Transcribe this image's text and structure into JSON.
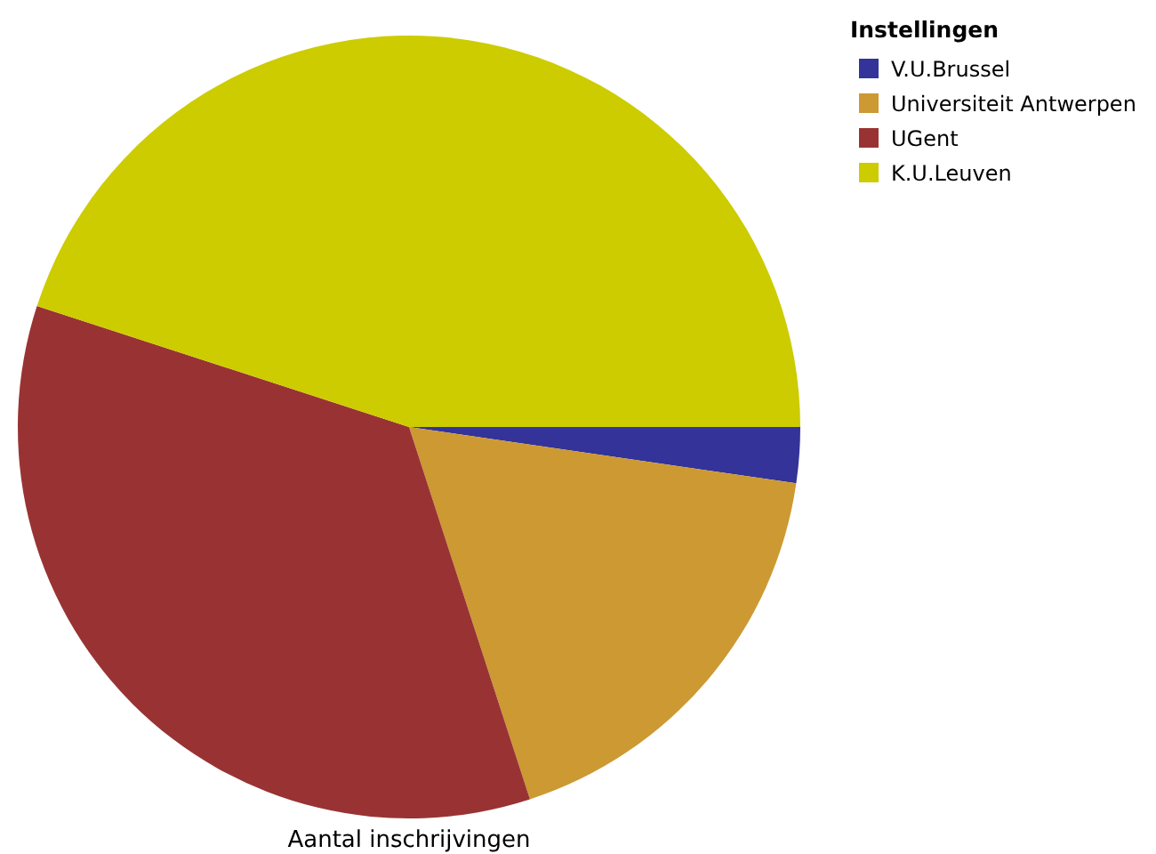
{
  "chart_data": {
    "type": "pie",
    "xlabel": "Aantal inschrijvingen",
    "legend_title": "Instellingen",
    "legend": "top right",
    "categories": [
      "V.U.Brussel",
      "Universiteit Antwerpen",
      "UGent",
      "K.U.Leuven"
    ],
    "values": [
      2.3,
      17.7,
      35,
      45
    ],
    "colors": [
      "#333399",
      "#cc9933",
      "#993333",
      "#cccc00"
    ]
  }
}
